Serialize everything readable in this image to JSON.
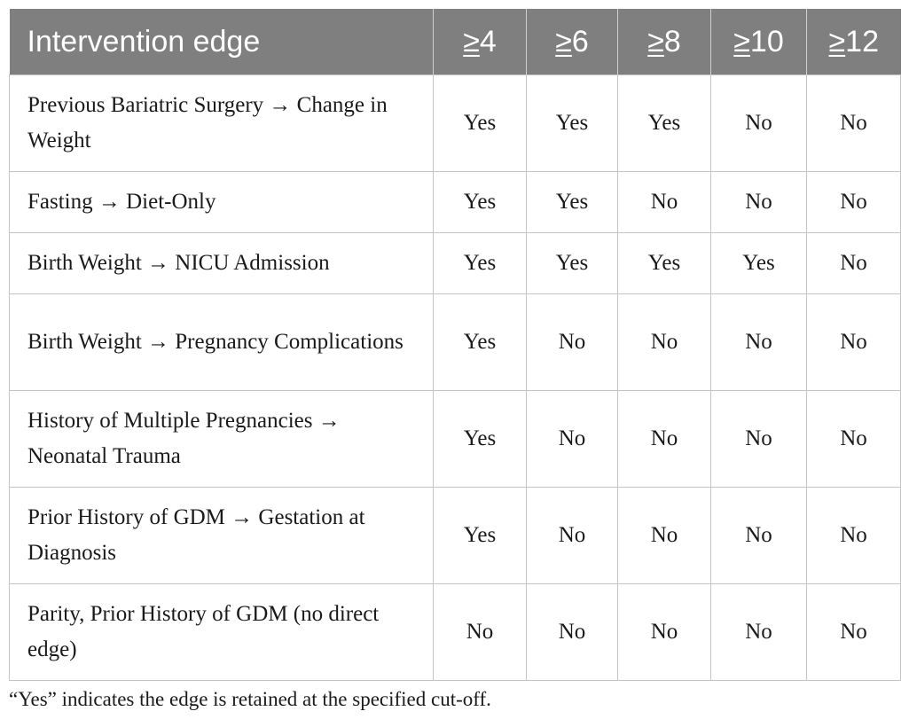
{
  "table": {
    "headers": [
      "Intervention edge",
      "≥4",
      "≥6",
      "≥8",
      "≥10",
      "≥12"
    ],
    "header_sym": "≥",
    "header_nums": [
      "4",
      "6",
      "8",
      "10",
      "12"
    ],
    "rows": [
      {
        "edge": "Previous Bariatric Surgery → Change in Weight",
        "values": [
          "Yes",
          "Yes",
          "Yes",
          "No",
          "No"
        ]
      },
      {
        "edge": "Fasting → Diet-Only",
        "values": [
          "Yes",
          "Yes",
          "No",
          "No",
          "No"
        ]
      },
      {
        "edge": "Birth Weight → NICU Admission",
        "values": [
          "Yes",
          "Yes",
          "Yes",
          "Yes",
          "No"
        ]
      },
      {
        "edge": "Birth Weight → Pregnancy Complications",
        "values": [
          "Yes",
          "No",
          "No",
          "No",
          "No"
        ]
      },
      {
        "edge": "History of Multiple Pregnancies → Neonatal Trauma",
        "values": [
          "Yes",
          "No",
          "No",
          "No",
          "No"
        ]
      },
      {
        "edge": "Prior History of GDM → Gestation at Diagnosis",
        "values": [
          "Yes",
          "No",
          "No",
          "No",
          "No"
        ]
      },
      {
        "edge": "Parity, Prior History of GDM (no direct edge)",
        "values": [
          "No",
          "No",
          "No",
          "No",
          "No"
        ]
      }
    ]
  },
  "footnote": "“Yes” indicates the edge is retained at the specified cut-off.",
  "colors": {
    "header_bg": "#7f7f7f",
    "header_text": "#ffffff",
    "grid": "#c4c4c4"
  }
}
